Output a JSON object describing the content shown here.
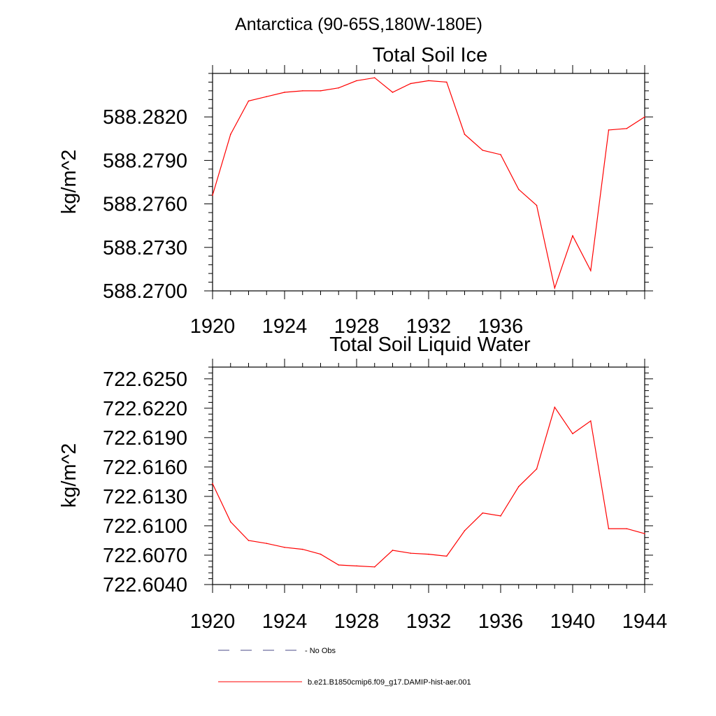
{
  "figure": {
    "title": "Antarctica (90-65S,180W-180E)",
    "line_color": "#ff0000",
    "obs_color": "#4a4a8a"
  },
  "legend": {
    "items": [
      {
        "label": "No Obs",
        "style": "dashed",
        "color": "#4a4a8a"
      },
      {
        "label": "b.e21.B1850cmip6.f09_g17.DAMIP-hist-aer.001",
        "style": "solid",
        "color": "#ff0000"
      }
    ]
  },
  "chart_data": [
    {
      "type": "line",
      "title": "Total Soil Ice",
      "xlabel": "",
      "ylabel": "kg/m^2",
      "xlim": [
        1920,
        1944
      ],
      "ylim": [
        588.27,
        588.285
      ],
      "xticks": [
        1920,
        1924,
        1928,
        1932,
        1936
      ],
      "xtick_labels": [
        "1920",
        "1924",
        "1928",
        "1932",
        "1936"
      ],
      "yticks": [
        588.27,
        588.273,
        588.276,
        588.279,
        588.282
      ],
      "ytick_labels": [
        "588.2700",
        "588.2730",
        "588.2760",
        "588.2790",
        "588.2820"
      ],
      "series": [
        {
          "name": "b.e21.B1850cmip6.f09_g17.DAMIP-hist-aer.001",
          "color": "#ff0000",
          "x": [
            1920,
            1921,
            1922,
            1923,
            1924,
            1925,
            1926,
            1927,
            1928,
            1929,
            1930,
            1931,
            1932,
            1933,
            1934,
            1935,
            1936,
            1937,
            1938,
            1939,
            1940,
            1941,
            1942,
            1943,
            1944
          ],
          "values": [
            588.2766,
            588.2808,
            588.2831,
            588.2834,
            588.2837,
            588.2838,
            588.2838,
            588.284,
            588.2845,
            588.2847,
            588.2837,
            588.2843,
            588.2845,
            588.2844,
            588.2808,
            588.2797,
            588.2794,
            588.277,
            588.2759,
            588.2702,
            588.2738,
            588.2714,
            588.2811,
            588.2812,
            588.282
          ]
        }
      ]
    },
    {
      "type": "line",
      "title": "Total Soil Liquid Water",
      "xlabel": "",
      "ylabel": "kg/m^2",
      "xlim": [
        1920,
        1944
      ],
      "ylim": [
        722.604,
        722.6262
      ],
      "xticks": [
        1920,
        1924,
        1928,
        1932,
        1936,
        1940,
        1944
      ],
      "xtick_labels": [
        "1920",
        "1924",
        "1928",
        "1932",
        "1936",
        "1940",
        "1944"
      ],
      "yticks": [
        722.604,
        722.607,
        722.61,
        722.613,
        722.616,
        722.619,
        722.622,
        722.625
      ],
      "ytick_labels": [
        "722.6040",
        "722.6070",
        "722.6100",
        "722.6130",
        "722.6160",
        "722.6190",
        "722.6220",
        "722.6250"
      ],
      "series": [
        {
          "name": "b.e21.B1850cmip6.f09_g17.DAMIP-hist-aer.001",
          "color": "#ff0000",
          "x": [
            1920,
            1921,
            1922,
            1923,
            1924,
            1925,
            1926,
            1927,
            1928,
            1929,
            1930,
            1931,
            1932,
            1933,
            1934,
            1935,
            1936,
            1937,
            1938,
            1939,
            1940,
            1941,
            1942,
            1943,
            1944
          ],
          "values": [
            722.6143,
            722.6104,
            722.6085,
            722.6082,
            722.6078,
            722.6076,
            722.6071,
            722.606,
            722.6059,
            722.6058,
            722.6075,
            722.6072,
            722.6071,
            722.6069,
            722.6095,
            722.6113,
            722.611,
            722.614,
            722.6158,
            722.6221,
            722.6194,
            722.6207,
            722.6097,
            722.6097,
            722.6092
          ]
        }
      ]
    }
  ]
}
